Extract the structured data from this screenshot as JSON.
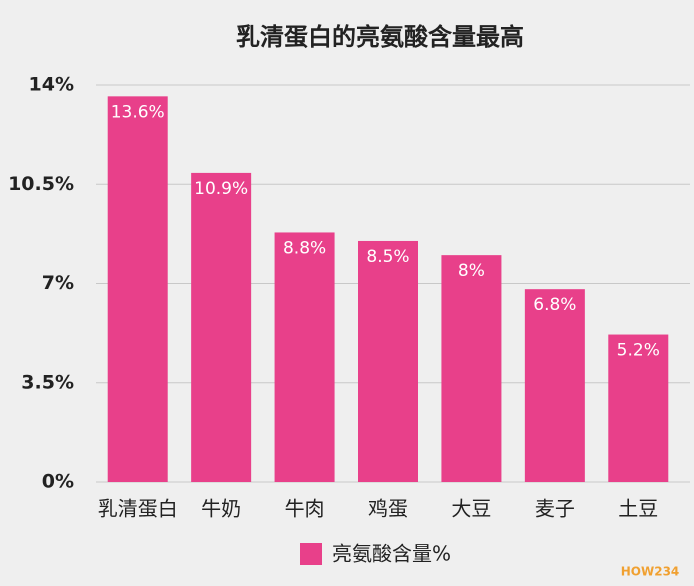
{
  "chart_data": {
    "type": "bar",
    "title": "乳清蛋白的亮氨酸含量最高",
    "categories": [
      "乳清蛋白",
      "牛奶",
      "牛肉",
      "鸡蛋",
      "大豆",
      "麦子",
      "土豆"
    ],
    "series": [
      {
        "name": "亮氨酸含量%",
        "color": "#e8408a",
        "values": [
          13.6,
          10.9,
          8.8,
          8.5,
          8,
          6.8,
          5.2
        ],
        "value_labels": [
          "13.6%",
          "10.9%",
          "8.8%",
          "8.5%",
          "8%",
          "6.8%",
          "5.2%"
        ]
      }
    ],
    "ylim": [
      0,
      14
    ],
    "yticks": [
      {
        "value": 0,
        "label": "0%"
      },
      {
        "value": 3.5,
        "label": "3.5%"
      },
      {
        "value": 7,
        "label": "7%"
      },
      {
        "value": 10.5,
        "label": "10.5%"
      },
      {
        "value": 14,
        "label": "14%"
      }
    ],
    "grid": true,
    "legend": "bottom",
    "watermark": "HOW234"
  }
}
